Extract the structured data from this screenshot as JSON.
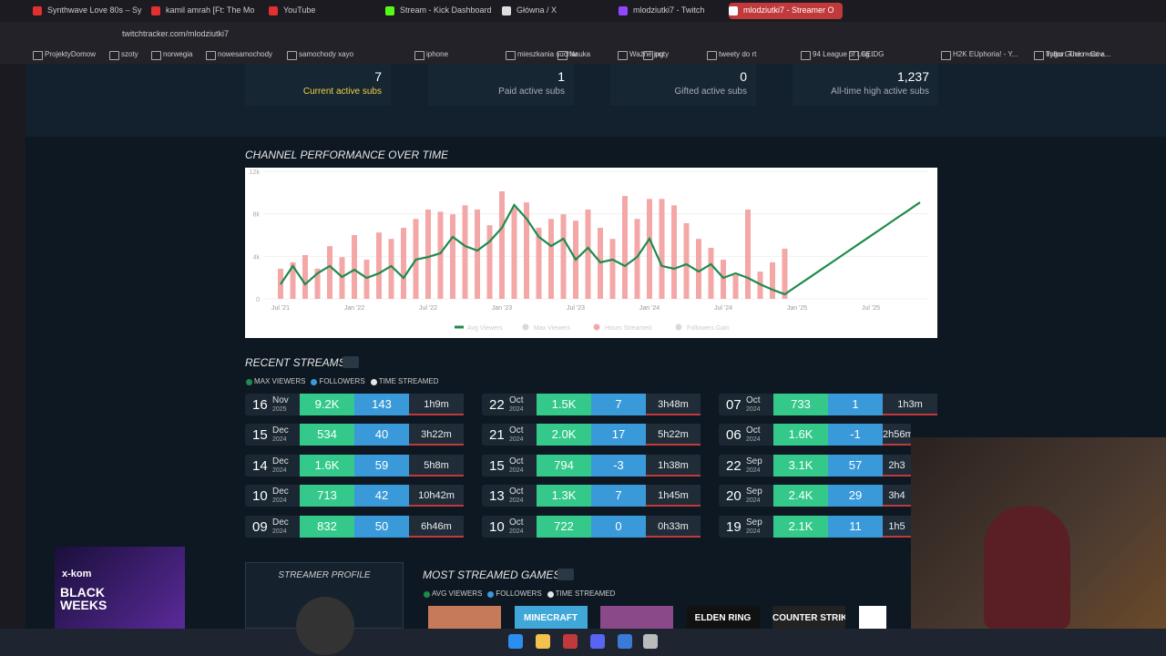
{
  "browser": {
    "tabs": [
      "Synthwave Love 80s – Sy",
      "kamil amrah [Ft: The Mo",
      "YouTube",
      "Stream - Kick Dashboard",
      "Główna / X",
      "mlodziutki7 - Twitch",
      "mlodziutki7 - Streamer O"
    ],
    "address": "twitchtracker.com/mlodziutki7",
    "bookmarks": [
      "ProjektyDomow",
      "szoty",
      "norwegia",
      "nowesamochody",
      "samochody xayo",
      "iphone",
      "mieszkania suchar",
      "Nauka",
      "Ważne jpg",
      "nuty",
      "tweety do rt",
      "94 League of Leg...",
      "CEIDG",
      "H2K EUphoria! - Y...",
      "Tylko Gucio - Cov...",
      "Imgur: The most a..."
    ]
  },
  "stats": [
    {
      "value": "7",
      "label": "Current active subs"
    },
    {
      "value": "1",
      "label": "Paid active subs"
    },
    {
      "value": "0",
      "label": "Gifted active subs"
    },
    {
      "value": "1,237",
      "label": "All-time high active subs"
    }
  ],
  "performance_chart": {
    "type": "combo",
    "title": "CHANNEL PERFORMANCE OVER TIME",
    "categories": [
      "Jul '21",
      null,
      null,
      null,
      null,
      null,
      "Jan '22",
      null,
      null,
      null,
      null,
      null,
      "Jul '22",
      null,
      null,
      null,
      null,
      null,
      "Jan '23",
      null,
      null,
      null,
      null,
      null,
      "Jul '23",
      null,
      null,
      null,
      null,
      null,
      "Jan '24",
      null,
      null,
      null,
      null,
      null,
      "Jul '24",
      null,
      null,
      null,
      null,
      null,
      "Jan '25",
      null,
      null,
      null,
      null,
      null,
      "Jul '25",
      null,
      null,
      null,
      null
    ],
    "ylim": [
      0,
      12000
    ],
    "yticks": [
      0,
      {
        "value": 4000,
        "label": "4k"
      },
      {
        "value": 8000,
        "label": "8k"
      },
      {
        "value": 12000,
        "label": "12k"
      }
    ],
    "y2lim": [
      0,
      300
    ],
    "series": [
      {
        "name": "Avg Viewers",
        "type": "line",
        "color": "#1e8b4d",
        "values": [
          1370,
          3090,
          1370,
          2400,
          3090,
          2060,
          2740,
          1970,
          2400,
          3090,
          1970,
          3690,
          3940,
          4290,
          5830,
          4970,
          4540,
          5400,
          6690,
          8830,
          7540,
          5830,
          4970,
          5660,
          3690,
          4800,
          3430,
          3690,
          3090,
          3940,
          5660,
          3090,
          2830,
          3260,
          2570,
          3260,
          1970,
          2400,
          1970,
          1370,
          860,
          430,
          1220,
          2000,
          2790,
          3570,
          4360,
          5150,
          5930,
          6720,
          7510,
          8290,
          9080
        ]
      },
      {
        "name": "Max Viewers",
        "color": "#d9d9d9",
        "visible": false
      },
      {
        "name": "Hours Streamed",
        "type": "bar",
        "axis": "y2",
        "color": "#f4a7a7",
        "values": [
          71,
          86,
          103,
          71,
          124,
          98,
          150,
          92,
          156,
          141,
          167,
          188,
          210,
          205,
          199,
          220,
          210,
          173,
          253,
          214,
          227,
          167,
          188,
          199,
          184,
          210,
          167,
          141,
          242,
          188,
          235,
          235,
          220,
          178,
          141,
          120,
          92,
          56,
          210,
          64,
          86,
          118,
          null,
          null,
          null,
          null,
          null,
          null,
          null,
          null,
          null,
          null,
          null
        ]
      },
      {
        "name": "Followers Gain",
        "color": "#d9d9d9",
        "visible": false
      }
    ]
  },
  "recent_streams": {
    "title": "RECENT STREAMS",
    "legend": [
      {
        "name": "MAX VIEWERS",
        "color": "#1e8b4d"
      },
      {
        "name": "FOLLOWERS",
        "color": "#3a9ad9"
      },
      {
        "name": "TIME STREAMED",
        "color": "#e6e6e6"
      }
    ],
    "columns": [
      [
        {
          "day": "16",
          "month": "Nov",
          "year": "2025",
          "max_viewers": "9.2K",
          "followers": "143",
          "time": "1h9m"
        },
        {
          "day": "15",
          "month": "Dec",
          "year": "2024",
          "max_viewers": "534",
          "followers": "40",
          "time": "3h22m"
        },
        {
          "day": "14",
          "month": "Dec",
          "year": "2024",
          "max_viewers": "1.6K",
          "followers": "59",
          "time": "5h8m"
        },
        {
          "day": "10",
          "month": "Dec",
          "year": "2024",
          "max_viewers": "713",
          "followers": "42",
          "time": "10h42m"
        },
        {
          "day": "09",
          "month": "Dec",
          "year": "2024",
          "max_viewers": "832",
          "followers": "50",
          "time": "6h46m"
        }
      ],
      [
        {
          "day": "22",
          "month": "Oct",
          "year": "2024",
          "max_viewers": "1.5K",
          "followers": "7",
          "time": "3h48m"
        },
        {
          "day": "21",
          "month": "Oct",
          "year": "2024",
          "max_viewers": "2.0K",
          "followers": "17",
          "time": "5h22m"
        },
        {
          "day": "15",
          "month": "Oct",
          "year": "2024",
          "max_viewers": "794",
          "followers": "-3",
          "time": "1h38m"
        },
        {
          "day": "13",
          "month": "Oct",
          "year": "2024",
          "max_viewers": "1.3K",
          "followers": "7",
          "time": "1h45m"
        },
        {
          "day": "10",
          "month": "Oct",
          "year": "2024",
          "max_viewers": "722",
          "followers": "0",
          "time": "0h33m"
        }
      ],
      [
        {
          "day": "07",
          "month": "Oct",
          "year": "2024",
          "max_viewers": "733",
          "followers": "1",
          "time": "1h3m"
        },
        {
          "day": "06",
          "month": "Oct",
          "year": "2024",
          "max_viewers": "1.6K",
          "followers": "-1",
          "time": "2h56m"
        },
        {
          "day": "22",
          "month": "Sep",
          "year": "2024",
          "max_viewers": "3.1K",
          "followers": "57",
          "time": "2h3"
        },
        {
          "day": "20",
          "month": "Sep",
          "year": "2024",
          "max_viewers": "2.4K",
          "followers": "29",
          "time": "3h4"
        },
        {
          "day": "19",
          "month": "Sep",
          "year": "2024",
          "max_viewers": "2.1K",
          "followers": "11",
          "time": "1h5"
        }
      ]
    ]
  },
  "profile": {
    "title": "STREAMER PROFILE"
  },
  "games": {
    "title": "MOST STREAMED GAMES",
    "legend": [
      {
        "name": "AVG VIEWERS",
        "color": "#1e8b4d"
      },
      {
        "name": "FOLLOWERS",
        "color": "#3a9ad9"
      },
      {
        "name": "TIME STREAMED",
        "color": "#e6e6e6"
      }
    ],
    "tiles": [
      null,
      "MINECRAFT",
      null,
      "ELDEN RING",
      "COUNTER STRIKE",
      null
    ]
  },
  "ad": {
    "brand": "x-kom",
    "headline": "BLACK WEEKS"
  }
}
